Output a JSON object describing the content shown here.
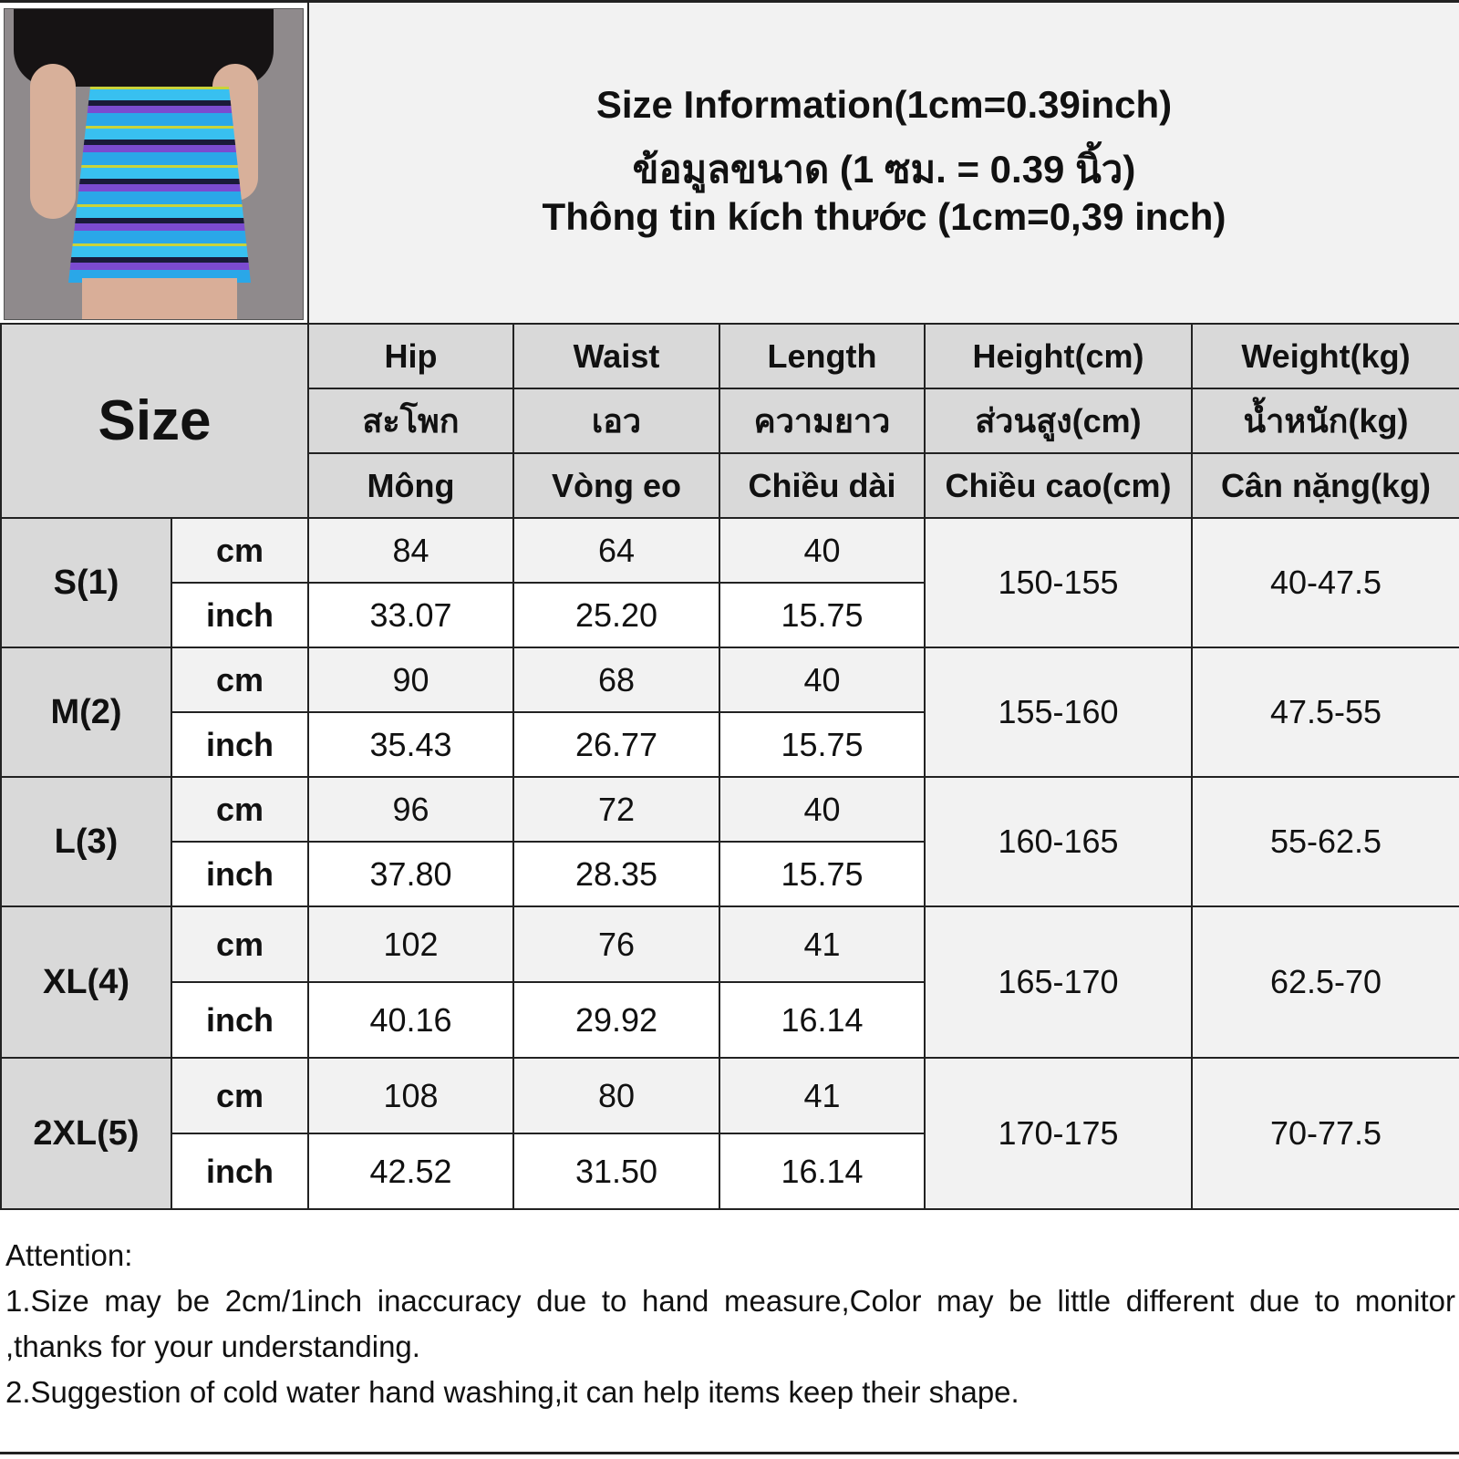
{
  "title": {
    "line1": "Size Information(1cm=0.39inch)",
    "line2": "ข้อมูลขนาด (1 ซม. = 0.39 นิ้ว)",
    "line3": "Thông tin kích thước (1cm=0,39 inch)"
  },
  "table": {
    "size_label": "Size",
    "columns": [
      {
        "en": "Hip",
        "th": "สะโพก",
        "vi": "Mông"
      },
      {
        "en": "Waist",
        "th": "เอว",
        "vi": "Vòng eo"
      },
      {
        "en": "Length",
        "th": "ความยาว",
        "vi": "Chiều dài"
      },
      {
        "en": "Height(cm)",
        "th": "ส่วนสูง(cm)",
        "vi": "Chiều cao(cm)"
      },
      {
        "en": "Weight(kg)",
        "th": "น้ำหนัก(kg)",
        "vi": "Cân nặng(kg)"
      }
    ],
    "units": {
      "cm": "cm",
      "inch": "inch"
    },
    "rows": [
      {
        "size": "S(1)",
        "cm": [
          "84",
          "64",
          "40"
        ],
        "inch": [
          "33.07",
          "25.20",
          "15.75"
        ],
        "height": "150-155",
        "weight": "40-47.5"
      },
      {
        "size": "M(2)",
        "cm": [
          "90",
          "68",
          "40"
        ],
        "inch": [
          "35.43",
          "26.77",
          "15.75"
        ],
        "height": "155-160",
        "weight": "47.5-55"
      },
      {
        "size": "L(3)",
        "cm": [
          "96",
          "72",
          "40"
        ],
        "inch": [
          "37.80",
          "28.35",
          "15.75"
        ],
        "height": "160-165",
        "weight": "55-62.5"
      },
      {
        "size": "XL(4)",
        "cm": [
          "102",
          "76",
          "41"
        ],
        "inch": [
          "40.16",
          "29.92",
          "16.14"
        ],
        "height": "165-170",
        "weight": "62.5-70"
      },
      {
        "size": "2XL(5)",
        "cm": [
          "108",
          "80",
          "41"
        ],
        "inch": [
          "42.52",
          "31.50",
          "16.14"
        ],
        "height": "170-175",
        "weight": "70-77.5"
      }
    ]
  },
  "notes": {
    "heading": "Attention:",
    "items": [
      "1.Size may be 2cm/1inch inaccuracy due to hand measure,Color may be little different due to monitor ,thanks for your understanding.",
      "2.Suggestion of cold water hand washing,it can help items keep their shape."
    ]
  }
}
